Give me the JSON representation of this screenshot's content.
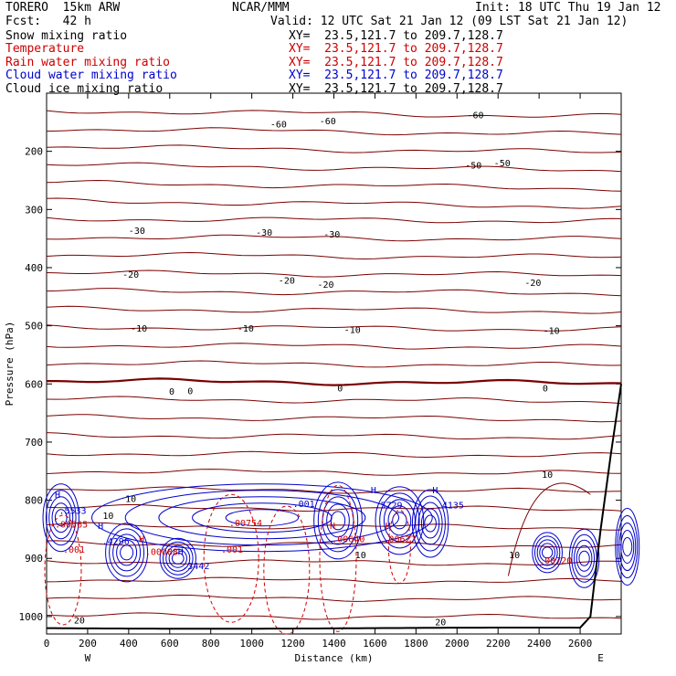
{
  "header": {
    "model": "TORERO  15km ARW",
    "center": "NCAR/MMM",
    "init": "Init: 18 UTC Thu 19 Jan 12",
    "fcst": "Fcst:   42 h",
    "valid": "Valid: 12 UTC Sat 21 Jan 12 (09 LST Sat 21 Jan 12)"
  },
  "fields": [
    {
      "name": "Snow mixing ratio",
      "xy": "XY=  23.5,121.7 to 209.7,128.7",
      "color": "#000000"
    },
    {
      "name": "Temperature",
      "xy": "XY=  23.5,121.7 to 209.7,128.7",
      "color": "#cc0000"
    },
    {
      "name": "Rain water mixing ratio",
      "xy": "XY=  23.5,121.7 to 209.7,128.7",
      "color": "#cc0000"
    },
    {
      "name": "Cloud water mixing ratio",
      "xy": "XY=  23.5,121.7 to 209.7,128.7",
      "color": "#0000cc"
    },
    {
      "name": "Cloud ice mixing ratio",
      "xy": "XY=  23.5,121.7 to 209.7,128.7",
      "color": "#000000"
    }
  ],
  "chart_data": {
    "type": "cross-section contour",
    "xlabel": "Distance (km)",
    "ylabel": "Pressure (hPa)",
    "xlim": [
      0,
      2800
    ],
    "ylim": [
      1030,
      100
    ],
    "x_ticks": [
      0,
      200,
      400,
      600,
      800,
      1000,
      1200,
      1400,
      1600,
      1800,
      2000,
      2200,
      2400,
      2600
    ],
    "y_ticks": [
      200,
      300,
      400,
      500,
      600,
      700,
      800,
      900,
      1000
    ],
    "x_end_labels": {
      "left": "W",
      "right": "E"
    },
    "temperature_isotherms": [
      {
        "value": -60,
        "pressure": 170,
        "labels": [
          {
            "text": "-60",
            "x": 2090,
            "p": 137
          },
          {
            "text": "-60",
            "x": 1130,
            "p": 153
          },
          {
            "text": "-60",
            "x": 1370,
            "p": 147
          }
        ]
      },
      {
        "value": -50,
        "pressure": 240,
        "labels": [
          {
            "text": "-50",
            "x": 2080,
            "p": 223
          },
          {
            "text": "-50",
            "x": 2220,
            "p": 219
          }
        ]
      },
      {
        "value": -40,
        "pressure": 300,
        "labels": []
      },
      {
        "value": -30,
        "pressure": 340,
        "labels": [
          {
            "text": "-30",
            "x": 440,
            "p": 336
          },
          {
            "text": "-30",
            "x": 1060,
            "p": 339
          },
          {
            "text": "-30",
            "x": 1390,
            "p": 342
          }
        ]
      },
      {
        "value": -20,
        "pressure": 420,
        "labels": [
          {
            "text": "-20",
            "x": 410,
            "p": 411
          },
          {
            "text": "-20",
            "x": 1170,
            "p": 421
          },
          {
            "text": "-20",
            "x": 1360,
            "p": 428
          },
          {
            "text": "-20",
            "x": 2370,
            "p": 425
          }
        ]
      },
      {
        "value": -10,
        "pressure": 510,
        "labels": [
          {
            "text": "-10",
            "x": 450,
            "p": 504
          },
          {
            "text": "-10",
            "x": 970,
            "p": 504
          },
          {
            "text": "-10",
            "x": 1490,
            "p": 506
          },
          {
            "text": "-10",
            "x": 2460,
            "p": 508
          }
        ]
      },
      {
        "value": 0,
        "pressure": 610,
        "labels": [
          {
            "text": "0",
            "x": 610,
            "p": 612
          },
          {
            "text": "0",
            "x": 700,
            "p": 611
          },
          {
            "text": "0",
            "x": 1430,
            "p": 607
          },
          {
            "text": "0",
            "x": 2430,
            "p": 607
          }
        ]
      },
      {
        "value": 10,
        "pressure": 820,
        "labels": [
          {
            "text": "10",
            "x": 300,
            "p": 826
          },
          {
            "text": "10",
            "x": 410,
            "p": 797
          },
          {
            "text": "10",
            "x": 1530,
            "p": 893
          },
          {
            "text": "10",
            "x": 2280,
            "p": 893
          },
          {
            "text": "10",
            "x": 2440,
            "p": 755
          }
        ]
      },
      {
        "value": 20,
        "pressure": 1000,
        "labels": [
          {
            "text": "20",
            "x": 160,
            "p": 1006
          },
          {
            "text": "20",
            "x": 1920,
            "p": 1009
          }
        ]
      }
    ],
    "cloud_water_labels": [
      {
        "text": "H",
        "x": 40,
        "p": 790
      },
      {
        "text": ".5533",
        "x": 60,
        "p": 817
      },
      {
        "text": "H",
        "x": 250,
        "p": 843
      },
      {
        "text": ".4296",
        "x": 270,
        "p": 870
      },
      {
        "text": "H",
        "x": 640,
        "p": 888
      },
      {
        "text": ".3442",
        "x": 660,
        "p": 912
      },
      {
        "text": ".001",
        "x": 1200,
        "p": 805
      },
      {
        "text": "H",
        "x": 1580,
        "p": 782
      },
      {
        "text": ".5729",
        "x": 1600,
        "p": 808
      },
      {
        "text": "H",
        "x": 1880,
        "p": 782
      },
      {
        "text": ".4135",
        "x": 1900,
        "p": 808
      }
    ],
    "rain_water_labels": [
      {
        "text": ".00565",
        "x": 40,
        "p": 841
      },
      {
        "text": ".001",
        "x": 80,
        "p": 884
      },
      {
        "text": "H",
        "x": 450,
        "p": 866
      },
      {
        "text": ".00088",
        "x": 480,
        "p": 888
      },
      {
        "text": ".00754",
        "x": 890,
        "p": 838
      },
      {
        "text": ".001",
        "x": 850,
        "p": 884
      },
      {
        "text": "H",
        "x": 1380,
        "p": 843
      },
      {
        "text": ".00640",
        "x": 1390,
        "p": 866
      },
      {
        "text": "H",
        "x": 1650,
        "p": 843
      },
      {
        "text": ".00627",
        "x": 1640,
        "p": 866
      },
      {
        "text": ".00720",
        "x": 2400,
        "p": 903
      }
    ]
  }
}
